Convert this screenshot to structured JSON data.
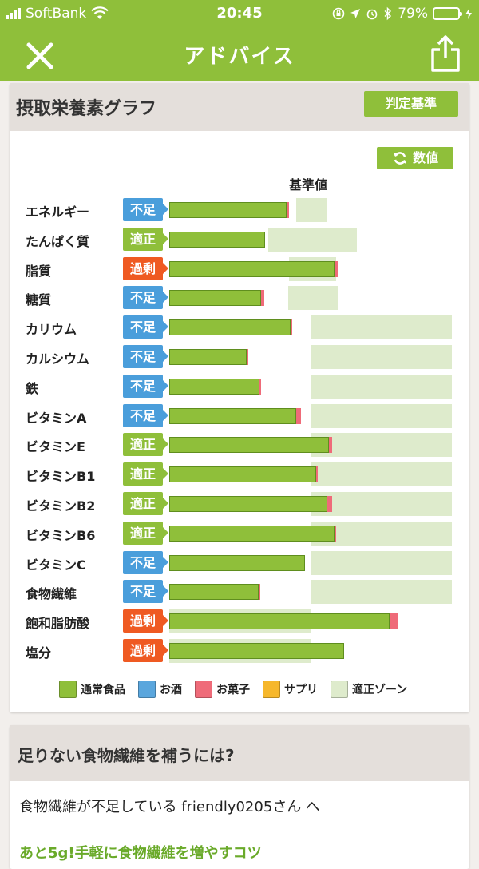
{
  "status": {
    "carrier": "SoftBank",
    "time": "20:45",
    "battery": "79%",
    "battery_level": 0.79
  },
  "header": {
    "title": "アドバイス"
  },
  "card1": {
    "title": "摂取栄養素グラフ",
    "criteria_button": "判定基準",
    "value_button": "数値",
    "ref_label": "基準値"
  },
  "chart_data": {
    "type": "bar",
    "categories": [
      "エネルギー",
      "たんぱく質",
      "脂質",
      "糖質",
      "カリウム",
      "カルシウム",
      "鉄",
      "ビタミンA",
      "ビタミンE",
      "ビタミンB1",
      "ビタミンB2",
      "ビタミンB6",
      "ビタミンC",
      "食物繊維",
      "飽和脂肪酸",
      "塩分"
    ],
    "judgments": [
      "不足",
      "適正",
      "過剰",
      "不足",
      "不足",
      "不足",
      "不足",
      "不足",
      "適正",
      "適正",
      "適正",
      "適正",
      "不足",
      "不足",
      "過剰",
      "過剰"
    ],
    "series": [
      {
        "name": "通常食品",
        "values": [
          83,
          68,
          117,
          65,
          86,
          55,
          64,
          90,
          113,
          104,
          112,
          117,
          96,
          63,
          156,
          124
        ]
      },
      {
        "name": "お菓子",
        "values": [
          2,
          0,
          3,
          2,
          1,
          1,
          1,
          3,
          2,
          1,
          3,
          1,
          0,
          1,
          6,
          0
        ]
      }
    ],
    "zones": [
      [
        90,
        112
      ],
      [
        70,
        133
      ],
      [
        85,
        118
      ],
      [
        84,
        120
      ],
      [
        100,
        200
      ],
      [
        100,
        200
      ],
      [
        100,
        200
      ],
      [
        100,
        200
      ],
      [
        100,
        200
      ],
      [
        100,
        200
      ],
      [
        100,
        200
      ],
      [
        100,
        200
      ],
      [
        100,
        200
      ],
      [
        100,
        200
      ],
      [
        0,
        100
      ],
      [
        0,
        100
      ]
    ],
    "xlim": [
      0,
      200
    ],
    "ref_value": 100,
    "legend": [
      "通常食品",
      "お酒",
      "お菓子",
      "サプリ",
      "適正ゾーン"
    ],
    "colors": {
      "通常食品": "#8fbf3a",
      "お酒": "#5aa6dd",
      "お菓子": "#ef6b79",
      "サプリ": "#f6b72b",
      "適正ゾーン": "#deebcc"
    },
    "badge_colors": {
      "不足": "#4a9edb",
      "適正": "#8fbf3a",
      "過剰": "#ef5a22"
    }
  },
  "card2": {
    "title": "足りない食物繊維を補うには?",
    "message": "食物繊維が不足している friendly0205さん へ",
    "link": "あと5g!手軽に食物繊維を増やすコツ"
  }
}
